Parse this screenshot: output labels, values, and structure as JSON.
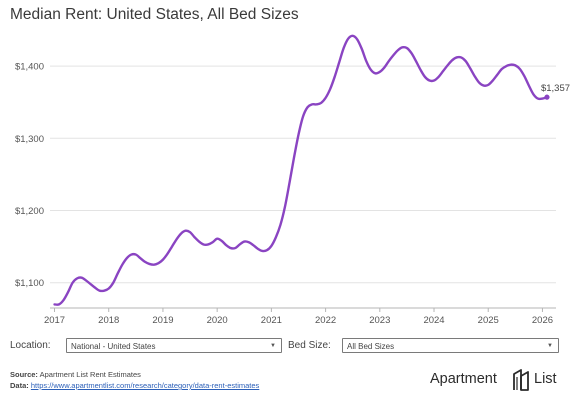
{
  "chart_data": {
    "type": "line",
    "title": "Median Rent: United States, All Bed Sizes",
    "x_ticks": [
      "2017",
      "2018",
      "2019",
      "2020",
      "2021",
      "2022",
      "2023",
      "2024",
      "2025",
      "2026"
    ],
    "y_ticks": [
      "$1,100",
      "$1,200",
      "$1,300",
      "$1,400"
    ],
    "ylim": [
      1065,
      1450
    ],
    "xlim": [
      "2016-12",
      "2026-04"
    ],
    "grid": "horizontal",
    "series": [
      {
        "color": "#8a44c2",
        "points": [
          [
            "2017-01",
            1070
          ],
          [
            "2017-02",
            1070
          ],
          [
            "2017-03",
            1076
          ],
          [
            "2017-04",
            1087
          ],
          [
            "2017-05",
            1100
          ],
          [
            "2017-06",
            1106
          ],
          [
            "2017-07",
            1107
          ],
          [
            "2017-08",
            1103
          ],
          [
            "2017-09",
            1098
          ],
          [
            "2017-10",
            1093
          ],
          [
            "2017-11",
            1089
          ],
          [
            "2017-12",
            1089
          ],
          [
            "2018-01",
            1092
          ],
          [
            "2018-02",
            1100
          ],
          [
            "2018-03",
            1113
          ],
          [
            "2018-04",
            1125
          ],
          [
            "2018-05",
            1134
          ],
          [
            "2018-06",
            1139
          ],
          [
            "2018-07",
            1139
          ],
          [
            "2018-08",
            1134
          ],
          [
            "2018-09",
            1129
          ],
          [
            "2018-10",
            1126
          ],
          [
            "2018-11",
            1125
          ],
          [
            "2018-12",
            1127
          ],
          [
            "2019-01",
            1132
          ],
          [
            "2019-02",
            1140
          ],
          [
            "2019-03",
            1150
          ],
          [
            "2019-04",
            1160
          ],
          [
            "2019-05",
            1168
          ],
          [
            "2019-06",
            1172
          ],
          [
            "2019-07",
            1170
          ],
          [
            "2019-08",
            1163
          ],
          [
            "2019-09",
            1157
          ],
          [
            "2019-10",
            1153
          ],
          [
            "2019-11",
            1153
          ],
          [
            "2019-12",
            1156
          ],
          [
            "2020-01",
            1161
          ],
          [
            "2020-02",
            1158
          ],
          [
            "2020-03",
            1152
          ],
          [
            "2020-04",
            1148
          ],
          [
            "2020-05",
            1148
          ],
          [
            "2020-06",
            1153
          ],
          [
            "2020-07",
            1157
          ],
          [
            "2020-08",
            1156
          ],
          [
            "2020-09",
            1152
          ],
          [
            "2020-10",
            1147
          ],
          [
            "2020-11",
            1144
          ],
          [
            "2020-12",
            1145
          ],
          [
            "2021-01",
            1151
          ],
          [
            "2021-02",
            1163
          ],
          [
            "2021-03",
            1180
          ],
          [
            "2021-04",
            1205
          ],
          [
            "2021-05",
            1238
          ],
          [
            "2021-06",
            1273
          ],
          [
            "2021-07",
            1305
          ],
          [
            "2021-08",
            1330
          ],
          [
            "2021-09",
            1343
          ],
          [
            "2021-10",
            1347
          ],
          [
            "2021-11",
            1347
          ],
          [
            "2021-12",
            1349
          ],
          [
            "2022-01",
            1356
          ],
          [
            "2022-02",
            1368
          ],
          [
            "2022-03",
            1385
          ],
          [
            "2022-04",
            1405
          ],
          [
            "2022-05",
            1425
          ],
          [
            "2022-06",
            1438
          ],
          [
            "2022-07",
            1442
          ],
          [
            "2022-08",
            1437
          ],
          [
            "2022-09",
            1424
          ],
          [
            "2022-10",
            1407
          ],
          [
            "2022-11",
            1395
          ],
          [
            "2022-12",
            1390
          ],
          [
            "2023-01",
            1392
          ],
          [
            "2023-02",
            1398
          ],
          [
            "2023-03",
            1407
          ],
          [
            "2023-04",
            1415
          ],
          [
            "2023-05",
            1422
          ],
          [
            "2023-06",
            1426
          ],
          [
            "2023-07",
            1425
          ],
          [
            "2023-08",
            1418
          ],
          [
            "2023-09",
            1407
          ],
          [
            "2023-10",
            1395
          ],
          [
            "2023-11",
            1385
          ],
          [
            "2023-12",
            1380
          ],
          [
            "2024-01",
            1380
          ],
          [
            "2024-02",
            1385
          ],
          [
            "2024-03",
            1393
          ],
          [
            "2024-04",
            1401
          ],
          [
            "2024-05",
            1408
          ],
          [
            "2024-06",
            1412
          ],
          [
            "2024-07",
            1412
          ],
          [
            "2024-08",
            1407
          ],
          [
            "2024-09",
            1397
          ],
          [
            "2024-10",
            1386
          ],
          [
            "2024-11",
            1377
          ],
          [
            "2024-12",
            1373
          ],
          [
            "2025-01",
            1374
          ],
          [
            "2025-02",
            1380
          ],
          [
            "2025-03",
            1388
          ],
          [
            "2025-04",
            1396
          ],
          [
            "2025-05",
            1400
          ],
          [
            "2025-06",
            1402
          ],
          [
            "2025-07",
            1401
          ],
          [
            "2025-08",
            1396
          ],
          [
            "2025-09",
            1386
          ],
          [
            "2025-10",
            1373
          ],
          [
            "2025-11",
            1361
          ],
          [
            "2025-12",
            1355
          ],
          [
            "2026-01",
            1355
          ],
          [
            "2026-02",
            1357
          ]
        ]
      }
    ],
    "end_label": "$1,357"
  },
  "controls": {
    "location_label": "Location:",
    "location_value": "National - United States",
    "bedsize_label": "Bed Size:",
    "bedsize_value": "All Bed Sizes",
    "caret": "▼"
  },
  "footer": {
    "source_label": "Source:",
    "source_text": "Apartment List Rent Estimates",
    "data_label": "Data:",
    "data_url": "https://www.apartmentlist.com/research/category/data-rent-estimates"
  },
  "brand": {
    "name_left": "Apartment",
    "name_right": "List"
  }
}
